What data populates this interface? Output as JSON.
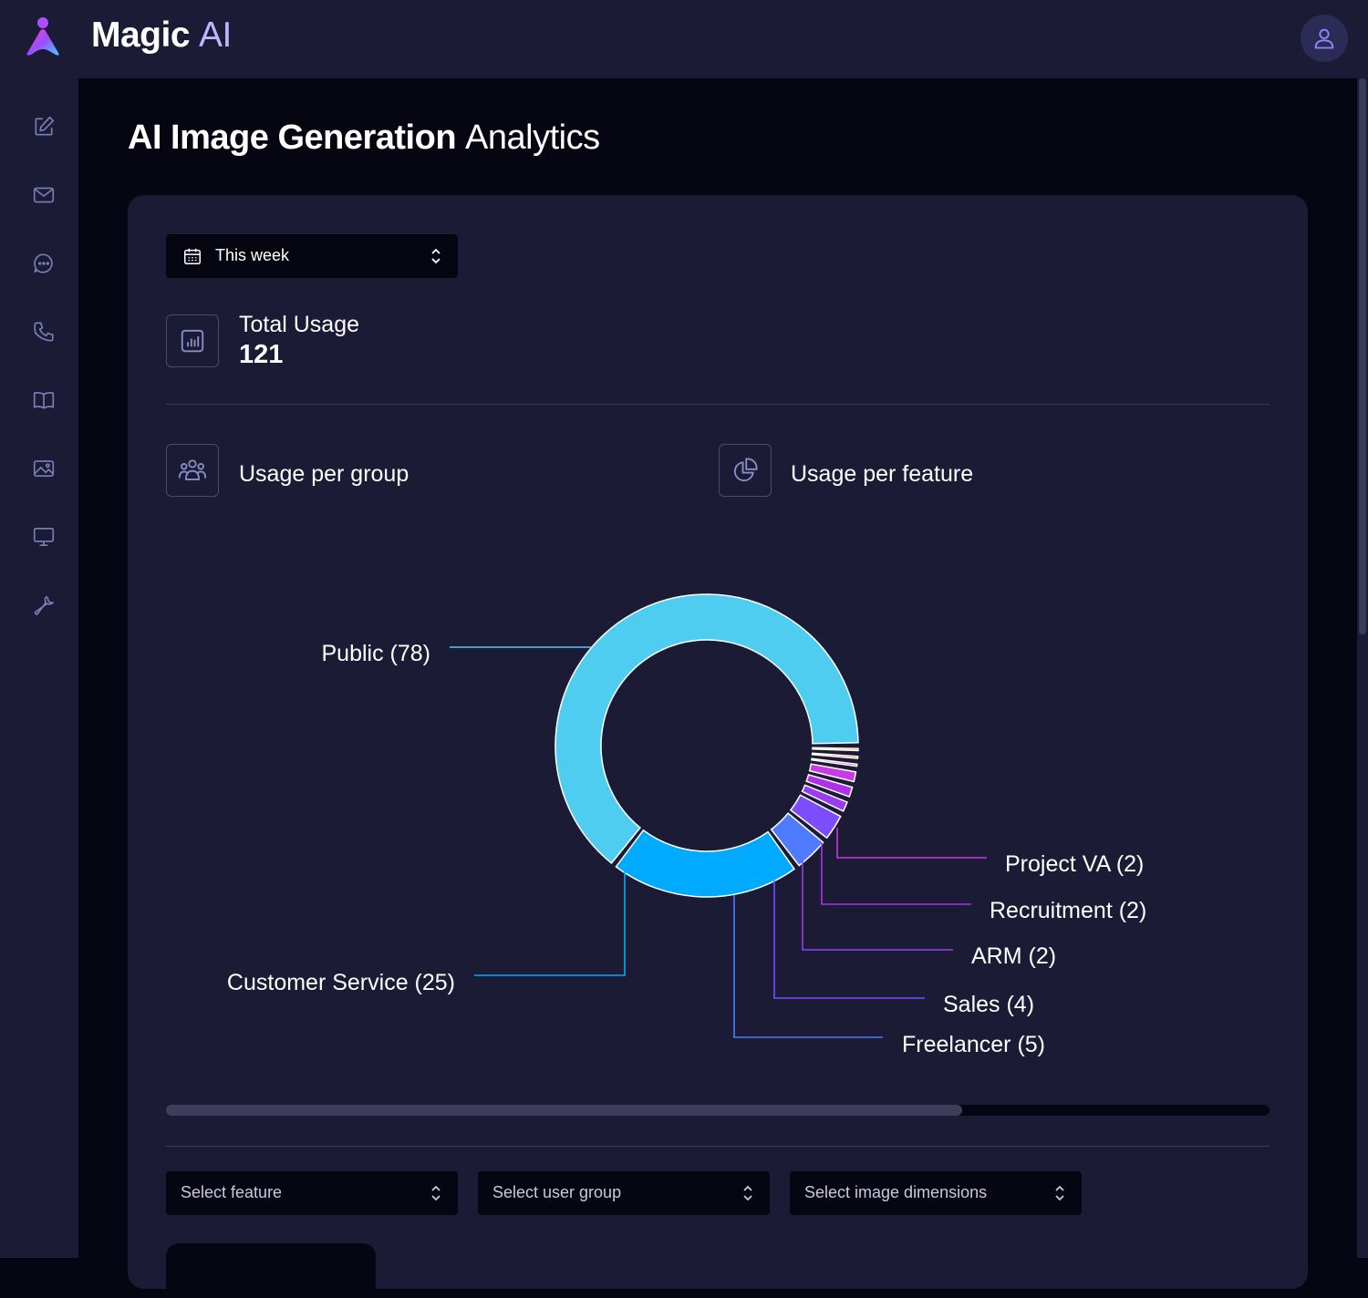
{
  "app": {
    "brand_bold": "Magic",
    "brand_light": "AI"
  },
  "sidebar": {
    "items": [
      {
        "icon": "edit-icon"
      },
      {
        "icon": "mail-icon"
      },
      {
        "icon": "chat-icon"
      },
      {
        "icon": "phone-icon"
      },
      {
        "icon": "book-icon"
      },
      {
        "icon": "image-icon"
      },
      {
        "icon": "monitor-icon"
      },
      {
        "icon": "wrench-icon"
      }
    ]
  },
  "page": {
    "title_bold": "AI Image Generation",
    "title_light": "Analytics"
  },
  "date_filter": {
    "value": "This week"
  },
  "stats": {
    "total_label": "Total Usage",
    "total_value": "121"
  },
  "sections": {
    "group_label": "Usage per group",
    "feature_label": "Usage per feature"
  },
  "filters": {
    "feature_placeholder": "Select feature",
    "group_placeholder": "Select user group",
    "dimensions_placeholder": "Select image dimensions"
  },
  "colors": {
    "background": "#060612",
    "panel": "#1b1b36",
    "public": "#4ecdf0",
    "customer_service": "#00aaff",
    "freelancer": "#4e7bff",
    "sales": "#7b4dff",
    "arm": "#9a3cf0",
    "recruitment": "#b030ea",
    "project_va": "#c83ae6",
    "orange": "#ff9a1e"
  },
  "chart_data": {
    "type": "pie",
    "variant": "donut",
    "legend": "labels with leader lines",
    "labels": [
      "Public (78)",
      "Customer Service (25)",
      "Freelancer (5)",
      "Sales (4)",
      "ARM (2)",
      "Recruitment (2)",
      "Project VA (2)"
    ],
    "segments": [
      {
        "value": 78,
        "color": "#4ecdf0"
      },
      {
        "value": 25,
        "color": "#00aaff"
      },
      {
        "value": 5,
        "color": "#4e7bff"
      },
      {
        "value": 4,
        "color": "#7b4dff"
      },
      {
        "value": 2,
        "color": "#9a3cf0"
      },
      {
        "value": 2,
        "color": "#b030ea"
      },
      {
        "value": 2,
        "color": "#c83ae6"
      },
      {
        "value": 1,
        "color": "#e040d0"
      },
      {
        "value": 1,
        "color": "#ff6a2a"
      },
      {
        "value": 1,
        "color": "#ff9a1e"
      }
    ]
  }
}
